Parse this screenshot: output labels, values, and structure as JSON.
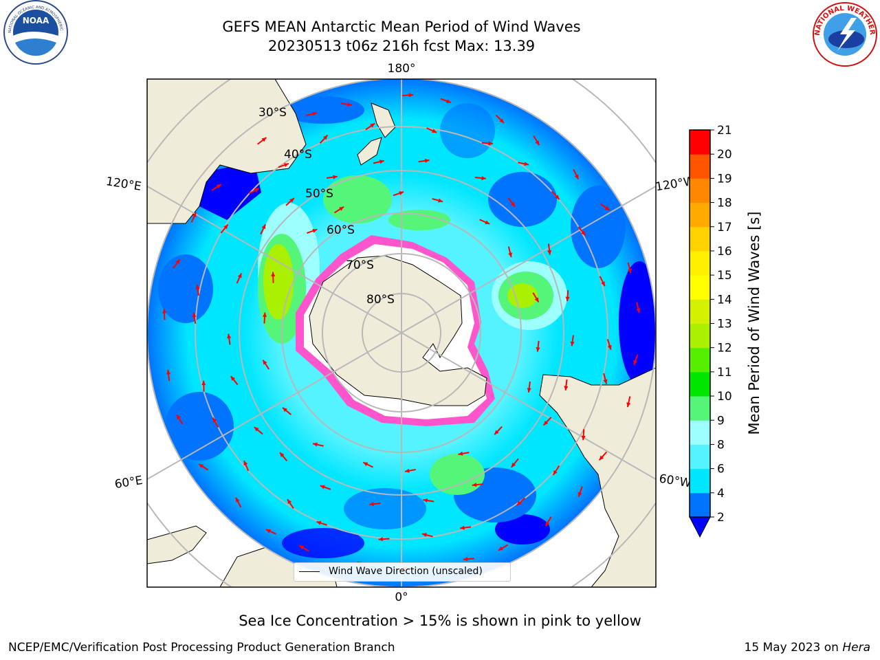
{
  "title": {
    "line1": "GEFS MEAN Antarctic Mean Period of Wind Waves",
    "line2": "20230513 t06z 216h fcst   Max: 13.39"
  },
  "logos": {
    "left": {
      "name": "NOAA",
      "ring_text": "NATIONAL OCEANIC AND ATMOSPHERIC ADMINISTRATION · U.S. DEPARTMENT OF COMMERCE"
    },
    "right": {
      "ring_text": "NATIONAL WEATHER SERVICE"
    }
  },
  "map": {
    "projection": "south-polar-stereographic",
    "longitude_labels": {
      "top": "180°",
      "bottom": "0°",
      "left_upper": "120°E",
      "left_lower": "60°E",
      "right_upper": "120°W",
      "right_lower": "60°W"
    },
    "latitude_labels": [
      "30°S",
      "40°S",
      "50°S",
      "60°S",
      "70°S",
      "80°S"
    ],
    "legend": {
      "label": "Wind Wave Direction (unscaled)"
    },
    "colors": {
      "land": "#efedda",
      "ice_interior": "#ffffff",
      "ice_edge": "#ff55cc",
      "arrow": "#ff0000",
      "grid": "#b8b8b8"
    }
  },
  "colorbar": {
    "label": "Mean Period of Wind Waves [s]",
    "ticks": [
      "2",
      "4",
      "6",
      "8",
      "9",
      "10",
      "11",
      "12",
      "13",
      "14",
      "15",
      "16",
      "17",
      "18",
      "19",
      "20",
      "21"
    ],
    "colors": [
      "#0073ff",
      "#00e6ff",
      "#55f2ff",
      "#9effff",
      "#55f57a",
      "#00e600",
      "#55f000",
      "#aaf000",
      "#d2f000",
      "#ffff00",
      "#ffef00",
      "#ffd200",
      "#ffaa00",
      "#ff8800",
      "#ff5500",
      "#ff0000"
    ],
    "under_color": "#0000ff"
  },
  "annotations": {
    "sea_ice_note": "Sea Ice Concentration > 15% is shown in pink to yellow",
    "credit": "NCEP/EMC/Verification Post Processing Product Generation Branch",
    "date_prefix": "15 May 2023 on ",
    "date_machine": "Hera"
  }
}
